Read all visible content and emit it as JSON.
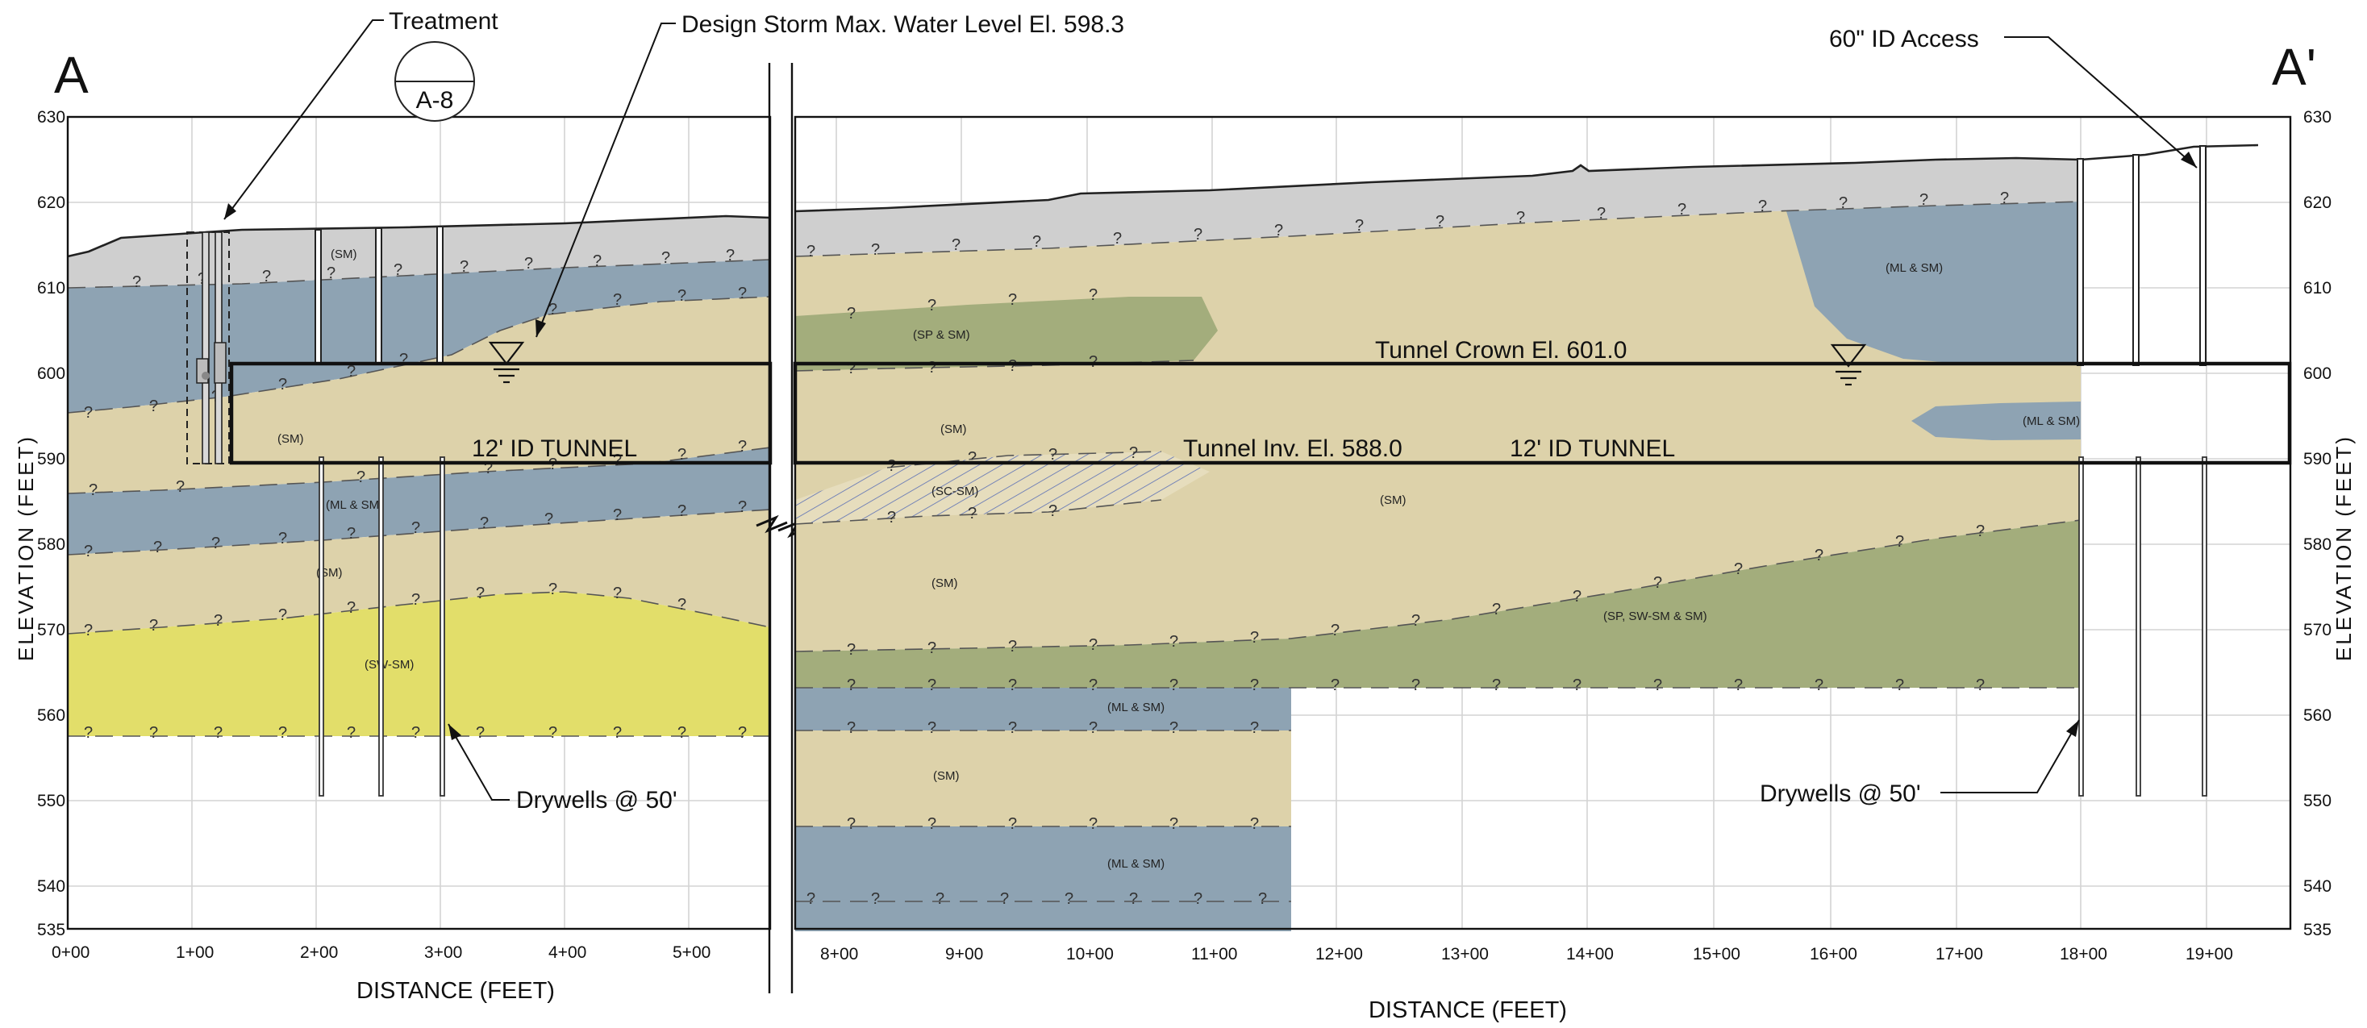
{
  "section": {
    "start_label": "A",
    "end_label": "A'",
    "detail_ref": "A-8"
  },
  "axes": {
    "y_title": "ELEVATION (FEET)",
    "x_title": "DISTANCE (FEET)",
    "y_ticks": [
      "630",
      "620",
      "610",
      "600",
      "590",
      "580",
      "570",
      "560",
      "550",
      "540",
      "535"
    ],
    "x_ticks_left": [
      "0+00",
      "1+00",
      "2+00",
      "3+00",
      "4+00",
      "5+00"
    ],
    "x_ticks_right": [
      "8+00",
      "9+00",
      "10+00",
      "11+00",
      "12+00",
      "13+00",
      "14+00",
      "15+00",
      "16+00",
      "17+00",
      "18+00",
      "19+00"
    ]
  },
  "callouts": {
    "treatment": "Treatment",
    "design_storm": "Design Storm Max. Water Level El. 598.3",
    "access": "60\" ID Access",
    "tunnel_crown": "Tunnel Crown El. 601.0",
    "tunnel_left": "12' ID TUNNEL",
    "tunnel_inv": "Tunnel Inv. El. 588.0",
    "tunnel_right": "12' ID TUNNEL",
    "drywells_left": "Drywells @ 50'",
    "drywells_right": "Drywells @ 50'"
  },
  "soil_labels": {
    "sm": "(SM)",
    "ml_sm": "(ML & SM)",
    "sw_sm": "(SW-SM)",
    "sp_sm": "(SP & SM)",
    "sc_sm": "(SC-SM)",
    "sp_sw": "(SP, SW-SM & SM)"
  },
  "unknown_marker": "?",
  "colors": {
    "fill_gray": "#cfcfcf",
    "ml_sm_blue": "#8ea3b3",
    "sm_tan": "#ddd2aa",
    "sw_sm_yellow": "#e2de6a",
    "sp_green": "#a3ad7c",
    "sc_sm_light": "#e6ddbd"
  }
}
